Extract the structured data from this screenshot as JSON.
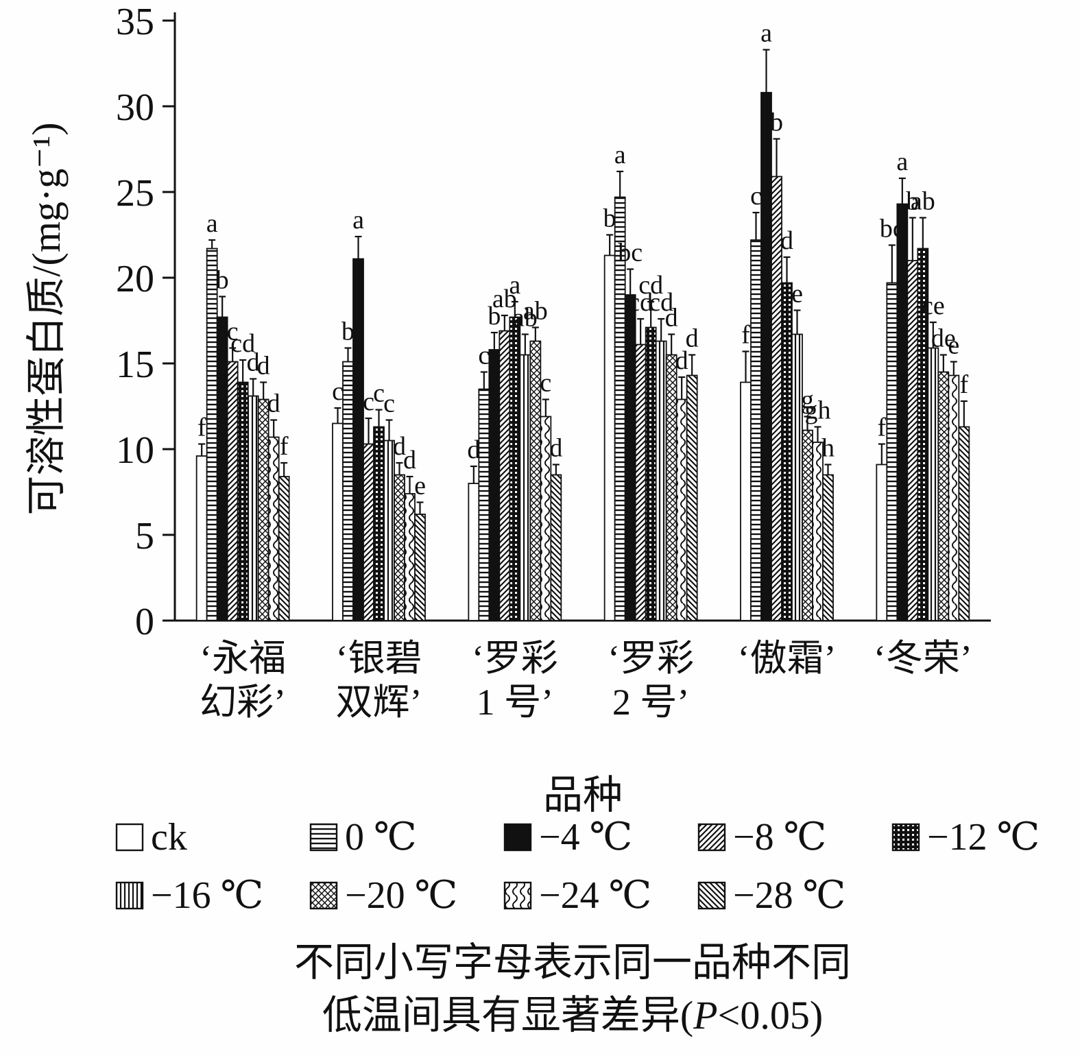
{
  "chart_data": {
    "type": "bar",
    "title": "",
    "ylabel": "可溶性蛋白质/(mg·g⁻¹)",
    "xlabel": "品种",
    "ylim": [
      0,
      35
    ],
    "yticks": [
      0,
      5,
      10,
      15,
      20,
      25,
      30,
      35
    ],
    "grid": false,
    "legend_position": "bottom",
    "categories": [
      "‘永福幻彩’",
      "‘银碧双辉’",
      "‘罗彩1号’",
      "‘罗彩2号’",
      "‘傲霜’",
      "‘冬荣’"
    ],
    "category_lines": [
      [
        "‘永福",
        "幻彩’"
      ],
      [
        "‘银碧",
        "双辉’"
      ],
      [
        "‘罗彩",
        "1 号’"
      ],
      [
        "‘罗彩",
        "2 号’"
      ],
      [
        "‘傲霜’"
      ],
      [
        "‘冬荣’"
      ]
    ],
    "series": [
      {
        "name": "ck",
        "pattern": "ck",
        "values": [
          9.6,
          11.5,
          8.0,
          21.3,
          13.9,
          9.1
        ],
        "errors": [
          0.7,
          0.9,
          1.0,
          1.2,
          1.8,
          1.2
        ],
        "letters": [
          "f",
          "c",
          "d",
          "b",
          "f",
          "f"
        ]
      },
      {
        "name": "0 ℃",
        "pattern": "hlines",
        "values": [
          21.7,
          15.1,
          13.5,
          24.7,
          22.2,
          19.7
        ],
        "errors": [
          0.5,
          0.8,
          1.0,
          1.5,
          1.6,
          2.2
        ],
        "letters": [
          "a",
          "b",
          "c",
          "a",
          "c",
          "bc"
        ]
      },
      {
        "name": "−4 ℃",
        "pattern": "solid",
        "values": [
          17.7,
          21.1,
          15.8,
          19.0,
          30.8,
          24.3
        ],
        "errors": [
          1.2,
          1.3,
          1.0,
          1.5,
          2.5,
          1.5
        ],
        "letters": [
          "b",
          "a",
          "b",
          "bc",
          "a",
          "a"
        ]
      },
      {
        "name": "−8 ℃",
        "pattern": "diag",
        "values": [
          15.1,
          10.3,
          16.9,
          16.1,
          25.9,
          21.0
        ],
        "errors": [
          0.8,
          1.5,
          0.9,
          1.5,
          2.2,
          2.5
        ],
        "letters": [
          "c",
          "c",
          "ab",
          "cd",
          "b",
          "b"
        ]
      },
      {
        "name": "−12 ℃",
        "pattern": "checker",
        "values": [
          13.9,
          11.3,
          17.7,
          17.1,
          19.7,
          21.7
        ],
        "errors": [
          1.3,
          1.0,
          0.9,
          1.5,
          1.5,
          1.8
        ],
        "letters": [
          "cd",
          "c",
          "a",
          "cd",
          "d",
          "ab"
        ]
      },
      {
        "name": "−16 ℃",
        "pattern": "vlines",
        "values": [
          13.1,
          10.5,
          15.5,
          16.3,
          16.7,
          15.9
        ],
        "errors": [
          1.0,
          1.2,
          1.2,
          1.3,
          1.4,
          1.5
        ],
        "letters": [
          "d",
          "c",
          "ab",
          "cd",
          "e",
          "ce"
        ]
      },
      {
        "name": "−20 ℃",
        "pattern": "cross",
        "values": [
          12.9,
          8.5,
          16.3,
          15.5,
          11.1,
          14.5
        ],
        "errors": [
          1.0,
          0.7,
          0.8,
          1.2,
          0.8,
          1.0
        ],
        "letters": [
          "d",
          "d",
          "ab",
          "d",
          "g",
          "de"
        ]
      },
      {
        "name": "−24 ℃",
        "pattern": "wave",
        "values": [
          10.7,
          7.4,
          11.9,
          12.9,
          10.4,
          14.3
        ],
        "errors": [
          1.0,
          1.0,
          1.0,
          1.3,
          0.9,
          0.8
        ],
        "letters": [
          "d",
          "d",
          "c",
          "d",
          "gh",
          "e"
        ]
      },
      {
        "name": "−28 ℃",
        "pattern": "bdiag",
        "values": [
          8.4,
          6.2,
          8.5,
          14.3,
          8.5,
          11.3
        ],
        "errors": [
          0.8,
          0.7,
          0.6,
          1.2,
          0.6,
          1.5
        ],
        "letters": [
          "f",
          "e",
          "d",
          "d",
          "h",
          "f"
        ]
      }
    ],
    "colors": {
      "bar_stroke": "#111111",
      "axis": "#111111",
      "bar_fill_solid": "#111111",
      "background": "#fefefe"
    }
  },
  "note": {
    "line1": "不同小写字母表示同一品种不同",
    "line2_prefix": "低温间具有显著差异(",
    "line2_italic": "P",
    "line2_suffix": "<0.05)"
  }
}
